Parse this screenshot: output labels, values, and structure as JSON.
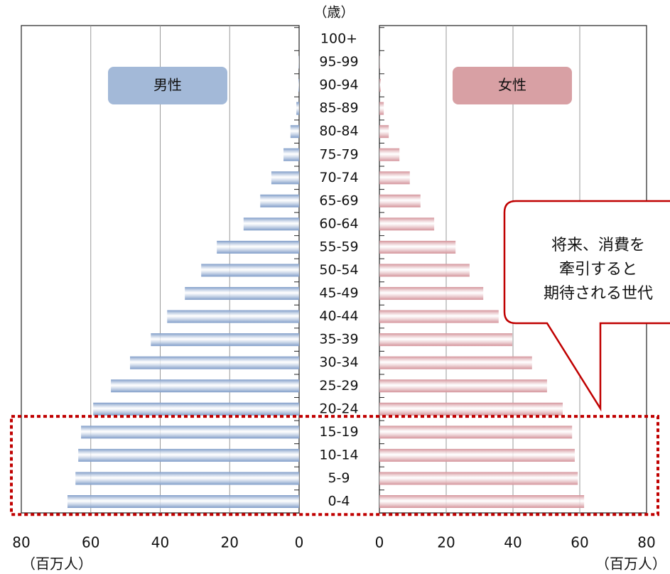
{
  "chart_data": {
    "type": "pyramid",
    "y_label": "（歳）",
    "x_label": "（百万人）",
    "categories": [
      "100+",
      "95-99",
      "90-94",
      "85-89",
      "80-84",
      "75-79",
      "70-74",
      "65-69",
      "60-64",
      "55-59",
      "50-54",
      "45-49",
      "40-44",
      "35-39",
      "30-34",
      "25-29",
      "20-24",
      "15-19",
      "10-14",
      "5-9",
      "0-4"
    ],
    "series": [
      {
        "name": "男性",
        "color": "#7f9cc8",
        "legend_color": "#a3b9d8",
        "values": [
          0,
          0.1,
          0.2,
          0.8,
          2.5,
          4.5,
          8.0,
          11.2,
          16.0,
          23.7,
          28.2,
          32.9,
          38.0,
          42.7,
          48.7,
          54.2,
          59.3,
          62.8,
          63.6,
          64.4,
          66.7
        ]
      },
      {
        "name": "女性",
        "color": "#d4939a",
        "legend_color": "#d8a0a4",
        "values": [
          0,
          0.1,
          0.4,
          1.3,
          2.8,
          6.0,
          9.1,
          12.3,
          16.4,
          22.8,
          27.0,
          31.1,
          35.7,
          39.8,
          45.7,
          50.2,
          54.9,
          57.7,
          58.5,
          59.4,
          61.3
        ]
      }
    ],
    "xlim": [
      0,
      80
    ],
    "xticks": [
      0,
      20,
      40,
      60,
      80
    ],
    "grid": true,
    "annotation_lines": [
      "将来、消費を",
      "牽引すると",
      "期待される世代"
    ]
  }
}
